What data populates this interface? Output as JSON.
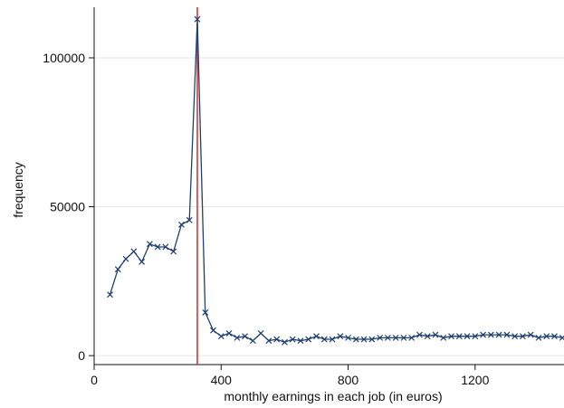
{
  "chart_data": {
    "type": "line",
    "title": "",
    "xlabel": "monthly earnings in each job (in euros)",
    "ylabel": "frequency",
    "xlim": [
      0,
      1480
    ],
    "ylim": [
      -3000,
      117000
    ],
    "xticks": [
      0,
      400,
      800,
      1200
    ],
    "xtick_labels": [
      "0",
      "400",
      "800",
      "1200"
    ],
    "yticks": [
      0,
      50000,
      100000
    ],
    "ytick_labels": [
      "0",
      "50000",
      "100000"
    ],
    "grid": true,
    "legend": "none",
    "reference_line": {
      "x": 325,
      "color": "#d62728"
    },
    "series": [
      {
        "marker": "x",
        "color": "#1f3f6e",
        "points": [
          [
            50,
            20500
          ],
          [
            75,
            29000
          ],
          [
            100,
            32500
          ],
          [
            125,
            35000
          ],
          [
            150,
            31500
          ],
          [
            175,
            37500
          ],
          [
            200,
            36500
          ],
          [
            225,
            36500
          ],
          [
            250,
            35000
          ],
          [
            275,
            44000
          ],
          [
            300,
            45500
          ],
          [
            325,
            113000
          ],
          [
            350,
            14500
          ],
          [
            375,
            8500
          ],
          [
            400,
            6500
          ],
          [
            425,
            7500
          ],
          [
            450,
            6000
          ],
          [
            475,
            6500
          ],
          [
            500,
            5000
          ],
          [
            525,
            7500
          ],
          [
            550,
            5000
          ],
          [
            575,
            5500
          ],
          [
            600,
            4500
          ],
          [
            625,
            5500
          ],
          [
            650,
            5000
          ],
          [
            675,
            5500
          ],
          [
            700,
            6500
          ],
          [
            725,
            5500
          ],
          [
            750,
            5500
          ],
          [
            775,
            6500
          ],
          [
            800,
            6000
          ],
          [
            825,
            5500
          ],
          [
            850,
            5500
          ],
          [
            875,
            5500
          ],
          [
            900,
            6000
          ],
          [
            925,
            6000
          ],
          [
            950,
            6000
          ],
          [
            975,
            6000
          ],
          [
            1000,
            6000
          ],
          [
            1025,
            7000
          ],
          [
            1050,
            6500
          ],
          [
            1075,
            7000
          ],
          [
            1100,
            6000
          ],
          [
            1125,
            6500
          ],
          [
            1150,
            6500
          ],
          [
            1175,
            6500
          ],
          [
            1200,
            6500
          ],
          [
            1225,
            7000
          ],
          [
            1250,
            7000
          ],
          [
            1275,
            7000
          ],
          [
            1300,
            7000
          ],
          [
            1325,
            6500
          ],
          [
            1350,
            6500
          ],
          [
            1375,
            7000
          ],
          [
            1400,
            6000
          ],
          [
            1425,
            6500
          ],
          [
            1450,
            6500
          ],
          [
            1475,
            6000
          ]
        ]
      }
    ]
  }
}
